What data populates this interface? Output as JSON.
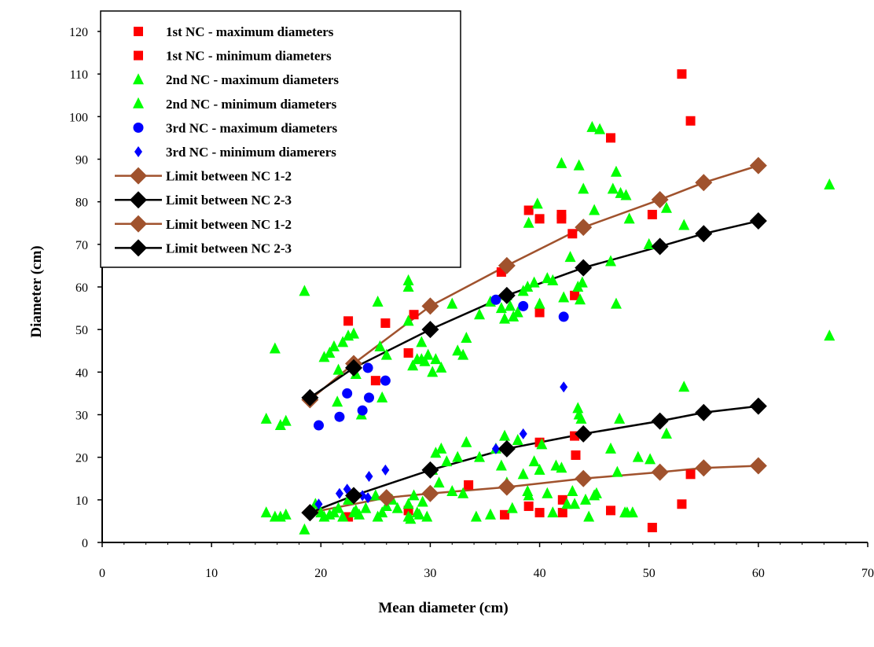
{
  "chart_data": {
    "type": "scatter",
    "title": "",
    "xlabel": "Mean diameter (cm)",
    "ylabel": "Diameter (cm)",
    "xlim": [
      0,
      70
    ],
    "ylim": [
      0,
      120
    ],
    "xticks": [
      0,
      10,
      20,
      30,
      40,
      50,
      60,
      70
    ],
    "yticks": [
      0,
      10,
      20,
      30,
      40,
      50,
      60,
      70,
      80,
      90,
      100,
      110,
      120
    ],
    "grid": false,
    "legend_position": "top-left",
    "series": [
      {
        "name": "1st NC - maximum diameters",
        "marker": "square",
        "color": "#ff0000",
        "points": [
          [
            22.5,
            52
          ],
          [
            25,
            38
          ],
          [
            25.9,
            51.5
          ],
          [
            28,
            44.5
          ],
          [
            28.5,
            53.5
          ],
          [
            36.5,
            63.5
          ],
          [
            39,
            78
          ],
          [
            40,
            76
          ],
          [
            40,
            54
          ],
          [
            42,
            77
          ],
          [
            42,
            76
          ],
          [
            43,
            72.5
          ],
          [
            43.2,
            58
          ],
          [
            46.5,
            95
          ],
          [
            50.3,
            77
          ],
          [
            53,
            110
          ],
          [
            53.8,
            99
          ]
        ]
      },
      {
        "name": "1st NC - minimum diameters",
        "marker": "square",
        "color": "#ff0000",
        "points": [
          [
            22.5,
            6
          ],
          [
            28,
            7.5
          ],
          [
            33.5,
            13.5
          ],
          [
            36.8,
            6.5
          ],
          [
            39,
            8.5
          ],
          [
            40,
            7
          ],
          [
            40,
            23.5
          ],
          [
            42.1,
            10
          ],
          [
            42.1,
            7
          ],
          [
            43.2,
            25
          ],
          [
            43.3,
            20.5
          ],
          [
            46.5,
            7.5
          ],
          [
            50.3,
            3.5
          ],
          [
            53,
            9
          ],
          [
            53.8,
            16
          ]
        ]
      },
      {
        "name": "2nd NC - maximum diameters",
        "marker": "triangle",
        "color": "#00ff00",
        "points": [
          [
            15,
            29
          ],
          [
            15.8,
            45.5
          ],
          [
            16.3,
            27.5
          ],
          [
            16.8,
            28.5
          ],
          [
            18.5,
            59
          ],
          [
            20.3,
            43.5
          ],
          [
            20.8,
            44.5
          ],
          [
            21.2,
            46
          ],
          [
            21.5,
            33
          ],
          [
            21.6,
            40.5
          ],
          [
            22,
            47
          ],
          [
            22.5,
            48.5
          ],
          [
            23,
            49
          ],
          [
            23.2,
            39.5
          ],
          [
            23.7,
            30
          ],
          [
            25.2,
            56.5
          ],
          [
            25.4,
            46
          ],
          [
            25.6,
            34
          ],
          [
            26,
            44
          ],
          [
            28,
            52
          ],
          [
            28,
            60
          ],
          [
            28,
            61.5
          ],
          [
            28.4,
            41.5
          ],
          [
            28.8,
            43
          ],
          [
            29.2,
            47
          ],
          [
            29.2,
            43
          ],
          [
            29.5,
            42.5
          ],
          [
            29.8,
            44
          ],
          [
            30.2,
            40
          ],
          [
            30.5,
            43
          ],
          [
            31,
            41
          ],
          [
            32,
            56
          ],
          [
            32.5,
            45
          ],
          [
            33,
            44
          ],
          [
            33.3,
            48
          ],
          [
            34.5,
            53.5
          ],
          [
            35.5,
            56.5
          ],
          [
            36.5,
            55
          ],
          [
            36.8,
            52.5
          ],
          [
            37,
            58
          ],
          [
            37.3,
            55.5
          ],
          [
            37.6,
            53
          ],
          [
            38,
            54
          ],
          [
            38.5,
            59
          ],
          [
            38.9,
            60
          ],
          [
            39,
            75
          ],
          [
            39.5,
            61
          ],
          [
            39.8,
            79.5
          ],
          [
            40,
            56
          ],
          [
            40.7,
            62
          ],
          [
            41.2,
            61.5
          ],
          [
            42,
            89
          ],
          [
            42.2,
            57.5
          ],
          [
            42.8,
            67
          ],
          [
            43.5,
            60
          ],
          [
            43.6,
            88.5
          ],
          [
            43.7,
            57
          ],
          [
            43.9,
            61
          ],
          [
            44,
            83
          ],
          [
            44.8,
            97.5
          ],
          [
            45,
            78
          ],
          [
            45.5,
            97
          ],
          [
            46.5,
            66
          ],
          [
            46.7,
            83
          ],
          [
            47,
            87
          ],
          [
            47,
            56
          ],
          [
            47.4,
            82
          ],
          [
            47.9,
            81.5
          ],
          [
            48.2,
            76
          ],
          [
            50,
            70
          ],
          [
            51.6,
            78.5
          ],
          [
            53.2,
            74.5
          ],
          [
            66.5,
            84
          ],
          [
            66.5,
            48.5
          ]
        ]
      },
      {
        "name": "2nd NC - minimum diameters",
        "marker": "triangle",
        "color": "#00ff00",
        "points": [
          [
            15,
            7
          ],
          [
            15.8,
            6
          ],
          [
            16.3,
            6
          ],
          [
            16.8,
            6.5
          ],
          [
            18.5,
            3
          ],
          [
            19.5,
            9
          ],
          [
            20,
            7
          ],
          [
            20.3,
            6
          ],
          [
            20.8,
            6.5
          ],
          [
            21.2,
            7
          ],
          [
            21.6,
            8
          ],
          [
            22,
            6
          ],
          [
            22.5,
            10
          ],
          [
            23,
            7
          ],
          [
            23.2,
            7.5
          ],
          [
            23.5,
            6.5
          ],
          [
            24.1,
            8
          ],
          [
            25,
            11
          ],
          [
            25.2,
            6
          ],
          [
            25.6,
            7
          ],
          [
            26,
            8.5
          ],
          [
            26.5,
            10
          ],
          [
            27,
            8
          ],
          [
            28,
            9
          ],
          [
            28,
            6
          ],
          [
            28.2,
            5.5
          ],
          [
            28.5,
            11
          ],
          [
            28.8,
            7
          ],
          [
            29,
            6.5
          ],
          [
            29.3,
            9.5
          ],
          [
            29.7,
            6
          ],
          [
            30.2,
            17
          ],
          [
            30.5,
            21
          ],
          [
            30.8,
            14
          ],
          [
            31,
            22
          ],
          [
            31.5,
            19
          ],
          [
            32,
            12
          ],
          [
            32.5,
            20
          ],
          [
            33,
            11.5
          ],
          [
            33.3,
            23.5
          ],
          [
            34.2,
            6
          ],
          [
            34.5,
            20
          ],
          [
            35.5,
            6.5
          ],
          [
            36,
            22
          ],
          [
            36.5,
            18
          ],
          [
            36.8,
            25
          ],
          [
            37,
            14
          ],
          [
            37.5,
            8
          ],
          [
            38,
            24
          ],
          [
            38.5,
            16
          ],
          [
            38.9,
            12
          ],
          [
            39,
            11
          ],
          [
            39.5,
            19
          ],
          [
            40,
            17
          ],
          [
            40.2,
            23
          ],
          [
            40.7,
            11.5
          ],
          [
            41.2,
            7
          ],
          [
            41.5,
            18
          ],
          [
            42,
            17.5
          ],
          [
            42.5,
            9
          ],
          [
            43,
            12
          ],
          [
            43.2,
            9
          ],
          [
            43.5,
            31.5
          ],
          [
            43.6,
            30
          ],
          [
            43.8,
            29
          ],
          [
            44.2,
            10
          ],
          [
            44.5,
            6
          ],
          [
            45,
            11
          ],
          [
            45.2,
            11.5
          ],
          [
            46.5,
            22
          ],
          [
            47.1,
            16.5
          ],
          [
            47.3,
            29
          ],
          [
            47.8,
            7
          ],
          [
            48,
            7
          ],
          [
            48.5,
            7
          ],
          [
            49,
            20
          ],
          [
            50.1,
            19.5
          ],
          [
            51.6,
            25.5
          ],
          [
            53.2,
            36.5
          ]
        ]
      },
      {
        "name": "3rd NC - maximum diameters",
        "marker": "circle",
        "color": "#0000ff",
        "points": [
          [
            19.8,
            27.5
          ],
          [
            21.7,
            29.5
          ],
          [
            22.4,
            35
          ],
          [
            23.8,
            31
          ],
          [
            24.3,
            41
          ],
          [
            24.4,
            34
          ],
          [
            25.9,
            38
          ],
          [
            36,
            57
          ],
          [
            38.5,
            55.5
          ],
          [
            42.2,
            53
          ]
        ]
      },
      {
        "name": "3rd NC - minimum diamerers",
        "marker": "diamond",
        "color": "#0000ff",
        "points": [
          [
            19.8,
            9
          ],
          [
            21.7,
            11.5
          ],
          [
            22.4,
            12.5
          ],
          [
            23.8,
            11
          ],
          [
            24.3,
            10.5
          ],
          [
            24.4,
            15.5
          ],
          [
            25.9,
            17
          ],
          [
            36,
            22
          ],
          [
            38.5,
            25.5
          ],
          [
            42.2,
            36.5
          ]
        ]
      },
      {
        "name": "Limit between NC 1-2",
        "marker": "diamond-line",
        "color": "#a0522d",
        "points": [
          [
            19,
            33.5
          ],
          [
            23,
            42
          ],
          [
            30,
            55.5
          ],
          [
            37,
            65
          ],
          [
            44,
            74
          ],
          [
            51,
            80.5
          ],
          [
            55,
            84.5
          ],
          [
            60,
            88.5
          ]
        ]
      },
      {
        "name": "Limit between NC 2-3",
        "marker": "diamond-line",
        "color": "#000000",
        "points": [
          [
            19,
            34
          ],
          [
            23,
            41
          ],
          [
            30,
            50
          ],
          [
            37,
            58
          ],
          [
            44,
            64.5
          ],
          [
            51,
            69.5
          ],
          [
            55,
            72.5
          ],
          [
            60,
            75.5
          ]
        ]
      },
      {
        "name": "Limit between NC 1-2",
        "marker": "diamond-line",
        "color": "#a0522d",
        "points": [
          [
            19,
            7
          ],
          [
            26,
            10.5
          ],
          [
            30,
            11.5
          ],
          [
            37,
            13
          ],
          [
            44,
            15
          ],
          [
            51,
            16.5
          ],
          [
            55,
            17.5
          ],
          [
            60,
            18
          ]
        ]
      },
      {
        "name": "Limit between NC 2-3",
        "marker": "diamond-line",
        "color": "#000000",
        "points": [
          [
            19,
            7
          ],
          [
            23,
            11
          ],
          [
            30,
            17
          ],
          [
            37,
            22
          ],
          [
            44,
            25.5
          ],
          [
            51,
            28.5
          ],
          [
            55,
            30.5
          ],
          [
            60,
            32
          ]
        ]
      }
    ]
  }
}
